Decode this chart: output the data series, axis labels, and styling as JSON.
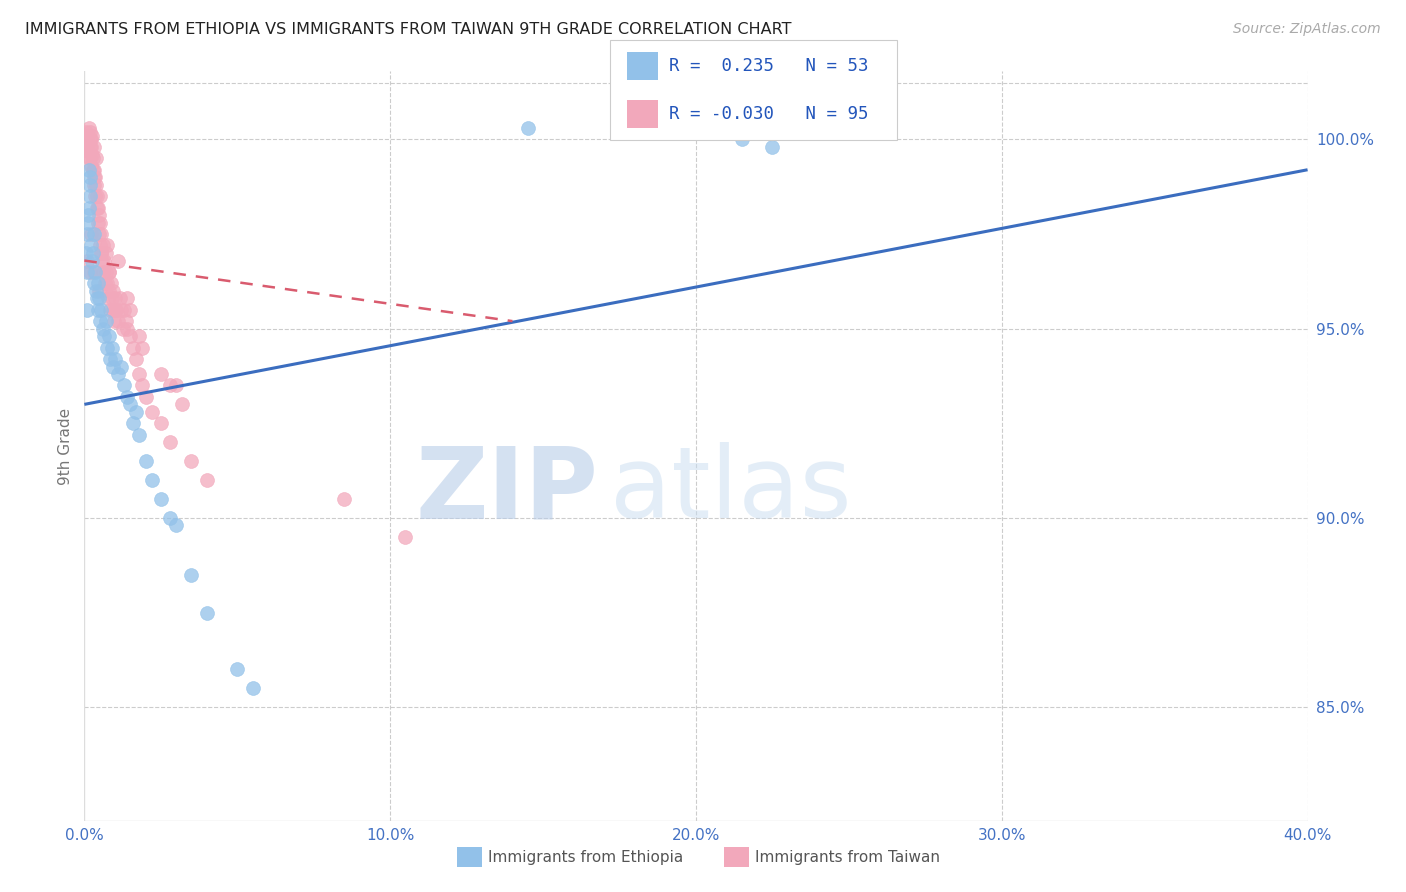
{
  "title": "IMMIGRANTS FROM ETHIOPIA VS IMMIGRANTS FROM TAIWAN 9TH GRADE CORRELATION CHART",
  "source": "Source: ZipAtlas.com",
  "ylabel": "9th Grade",
  "x_min": 0.0,
  "x_max": 40.0,
  "y_min": 82.0,
  "y_max": 101.8,
  "R_ethiopia": 0.235,
  "N_ethiopia": 53,
  "R_taiwan": -0.03,
  "N_taiwan": 95,
  "color_ethiopia": "#92C1E9",
  "color_taiwan": "#F2A8BB",
  "color_line_ethiopia": "#3B6DBF",
  "color_line_taiwan": "#D95B6E",
  "watermark_zip": "ZIP",
  "watermark_atlas": "atlas",
  "watermark_color_zip": "#B8CDE8",
  "watermark_color_atlas": "#C8DCF0",
  "eth_line_x0": 0.0,
  "eth_line_y0": 93.0,
  "eth_line_x1": 40.0,
  "eth_line_y1": 99.2,
  "tai_line_x0": 0.0,
  "tai_line_y0": 96.8,
  "tai_line_x1": 14.0,
  "tai_line_y1": 95.2,
  "ethiopia_x": [
    0.05,
    0.08,
    0.1,
    0.12,
    0.13,
    0.15,
    0.15,
    0.17,
    0.18,
    0.2,
    0.22,
    0.25,
    0.27,
    0.3,
    0.32,
    0.35,
    0.38,
    0.4,
    0.43,
    0.45,
    0.48,
    0.5,
    0.55,
    0.6,
    0.65,
    0.7,
    0.75,
    0.8,
    0.85,
    0.9,
    0.95,
    1.0,
    1.1,
    1.2,
    1.3,
    1.4,
    1.5,
    1.6,
    1.7,
    1.8,
    2.0,
    2.2,
    2.5,
    2.8,
    3.0,
    3.5,
    4.0,
    5.0,
    5.5,
    14.5,
    21.5,
    22.5,
    0.07
  ],
  "ethiopia_y": [
    97.0,
    96.5,
    97.5,
    98.0,
    97.8,
    98.2,
    99.2,
    99.0,
    98.8,
    98.5,
    97.2,
    96.8,
    97.0,
    96.2,
    97.5,
    96.5,
    96.0,
    95.8,
    96.2,
    95.5,
    95.8,
    95.2,
    95.5,
    95.0,
    94.8,
    95.2,
    94.5,
    94.8,
    94.2,
    94.5,
    94.0,
    94.2,
    93.8,
    94.0,
    93.5,
    93.2,
    93.0,
    92.5,
    92.8,
    92.2,
    91.5,
    91.0,
    90.5,
    90.0,
    89.8,
    88.5,
    87.5,
    86.0,
    85.5,
    100.3,
    100.0,
    99.8,
    95.5
  ],
  "taiwan_x": [
    0.05,
    0.07,
    0.08,
    0.1,
    0.12,
    0.13,
    0.15,
    0.15,
    0.17,
    0.18,
    0.2,
    0.2,
    0.22,
    0.22,
    0.23,
    0.25,
    0.25,
    0.27,
    0.28,
    0.3,
    0.3,
    0.32,
    0.33,
    0.35,
    0.35,
    0.37,
    0.38,
    0.4,
    0.42,
    0.43,
    0.45,
    0.47,
    0.48,
    0.5,
    0.5,
    0.52,
    0.53,
    0.55,
    0.58,
    0.6,
    0.62,
    0.65,
    0.68,
    0.7,
    0.72,
    0.75,
    0.78,
    0.8,
    0.82,
    0.85,
    0.88,
    0.9,
    0.93,
    0.95,
    0.98,
    1.0,
    1.05,
    1.1,
    1.15,
    1.2,
    1.25,
    1.3,
    1.35,
    1.4,
    1.5,
    1.6,
    1.7,
    1.8,
    1.9,
    2.0,
    2.2,
    2.5,
    2.8,
    3.0,
    3.5,
    4.0,
    0.1,
    0.22,
    0.48,
    0.75,
    1.0,
    1.4,
    1.8,
    2.5,
    3.2,
    0.3,
    0.55,
    0.8,
    1.1,
    1.5,
    1.9,
    2.8,
    8.5,
    10.5,
    0.18
  ],
  "taiwan_y": [
    100.2,
    100.0,
    99.8,
    100.1,
    99.9,
    99.7,
    100.3,
    99.5,
    100.0,
    99.8,
    100.2,
    99.5,
    99.8,
    100.0,
    99.3,
    99.6,
    100.1,
    99.2,
    99.5,
    99.0,
    99.8,
    98.8,
    99.2,
    98.5,
    99.0,
    98.8,
    99.5,
    98.2,
    98.5,
    97.8,
    98.2,
    97.5,
    98.0,
    97.8,
    98.5,
    97.2,
    97.5,
    97.0,
    96.8,
    97.2,
    96.5,
    96.8,
    96.2,
    97.0,
    96.5,
    96.2,
    95.8,
    96.5,
    96.0,
    95.5,
    96.2,
    95.8,
    95.5,
    96.0,
    95.2,
    95.8,
    95.5,
    95.2,
    95.8,
    95.5,
    95.0,
    95.5,
    95.2,
    95.0,
    94.8,
    94.5,
    94.2,
    93.8,
    93.5,
    93.2,
    92.8,
    92.5,
    92.0,
    93.5,
    91.5,
    91.0,
    96.8,
    97.5,
    96.0,
    97.2,
    95.5,
    95.8,
    94.8,
    93.8,
    93.0,
    96.5,
    97.0,
    96.5,
    96.8,
    95.5,
    94.5,
    93.5,
    90.5,
    89.5,
    96.5
  ]
}
